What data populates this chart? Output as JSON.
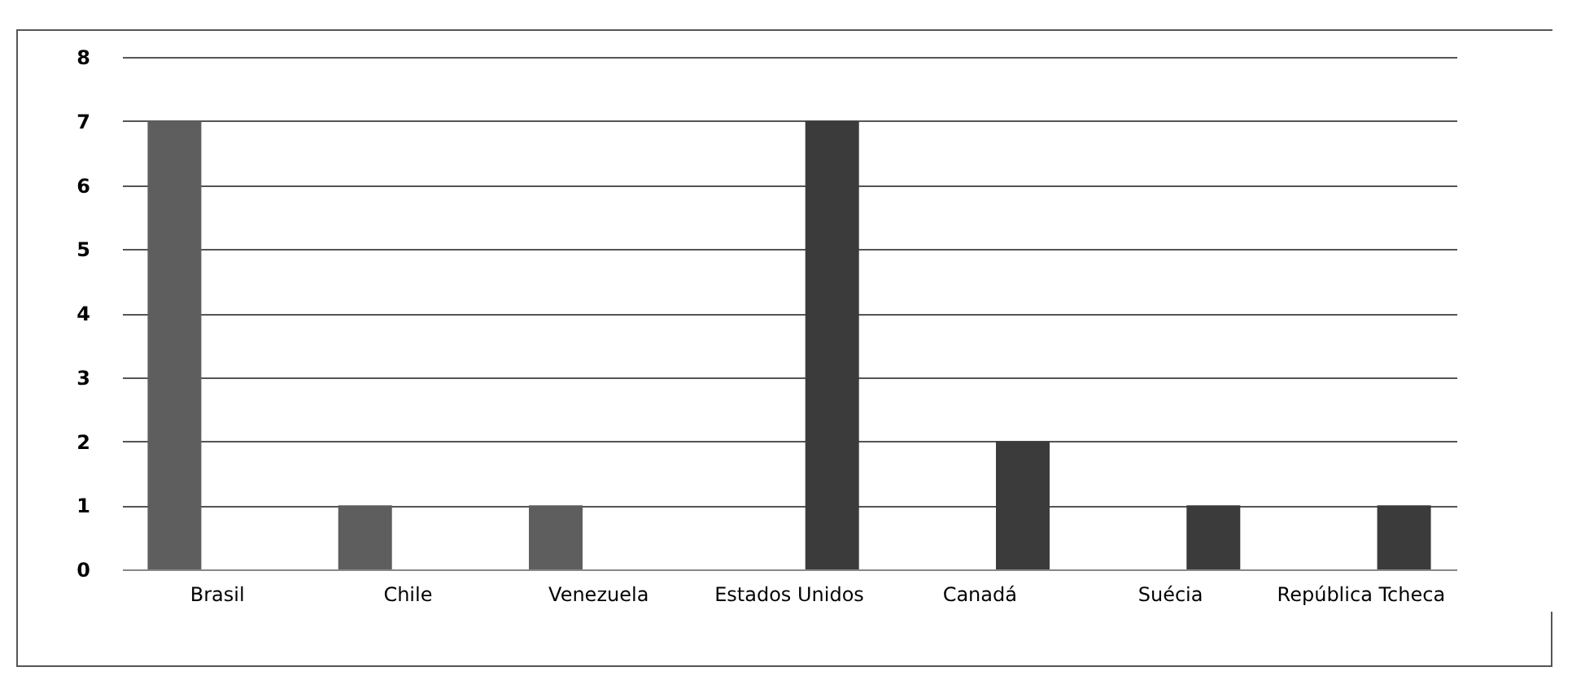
{
  "chart_data": {
    "type": "bar",
    "categories": [
      "Brasil",
      "Chile",
      "Venezuela",
      "Estados Unidos",
      "Canadá",
      "Suécia",
      "República Tcheca"
    ],
    "series": [
      {
        "color": "#5e5e5e",
        "values": [
          7,
          1,
          1,
          null,
          null,
          null,
          null
        ]
      },
      {
        "color": "#3b3b3b",
        "values": [
          null,
          null,
          null,
          7,
          2,
          1,
          1
        ]
      }
    ],
    "ylim": [
      0,
      8
    ],
    "yticks": [
      0,
      1,
      2,
      3,
      4,
      5,
      6,
      7,
      8
    ],
    "grid": "y"
  }
}
